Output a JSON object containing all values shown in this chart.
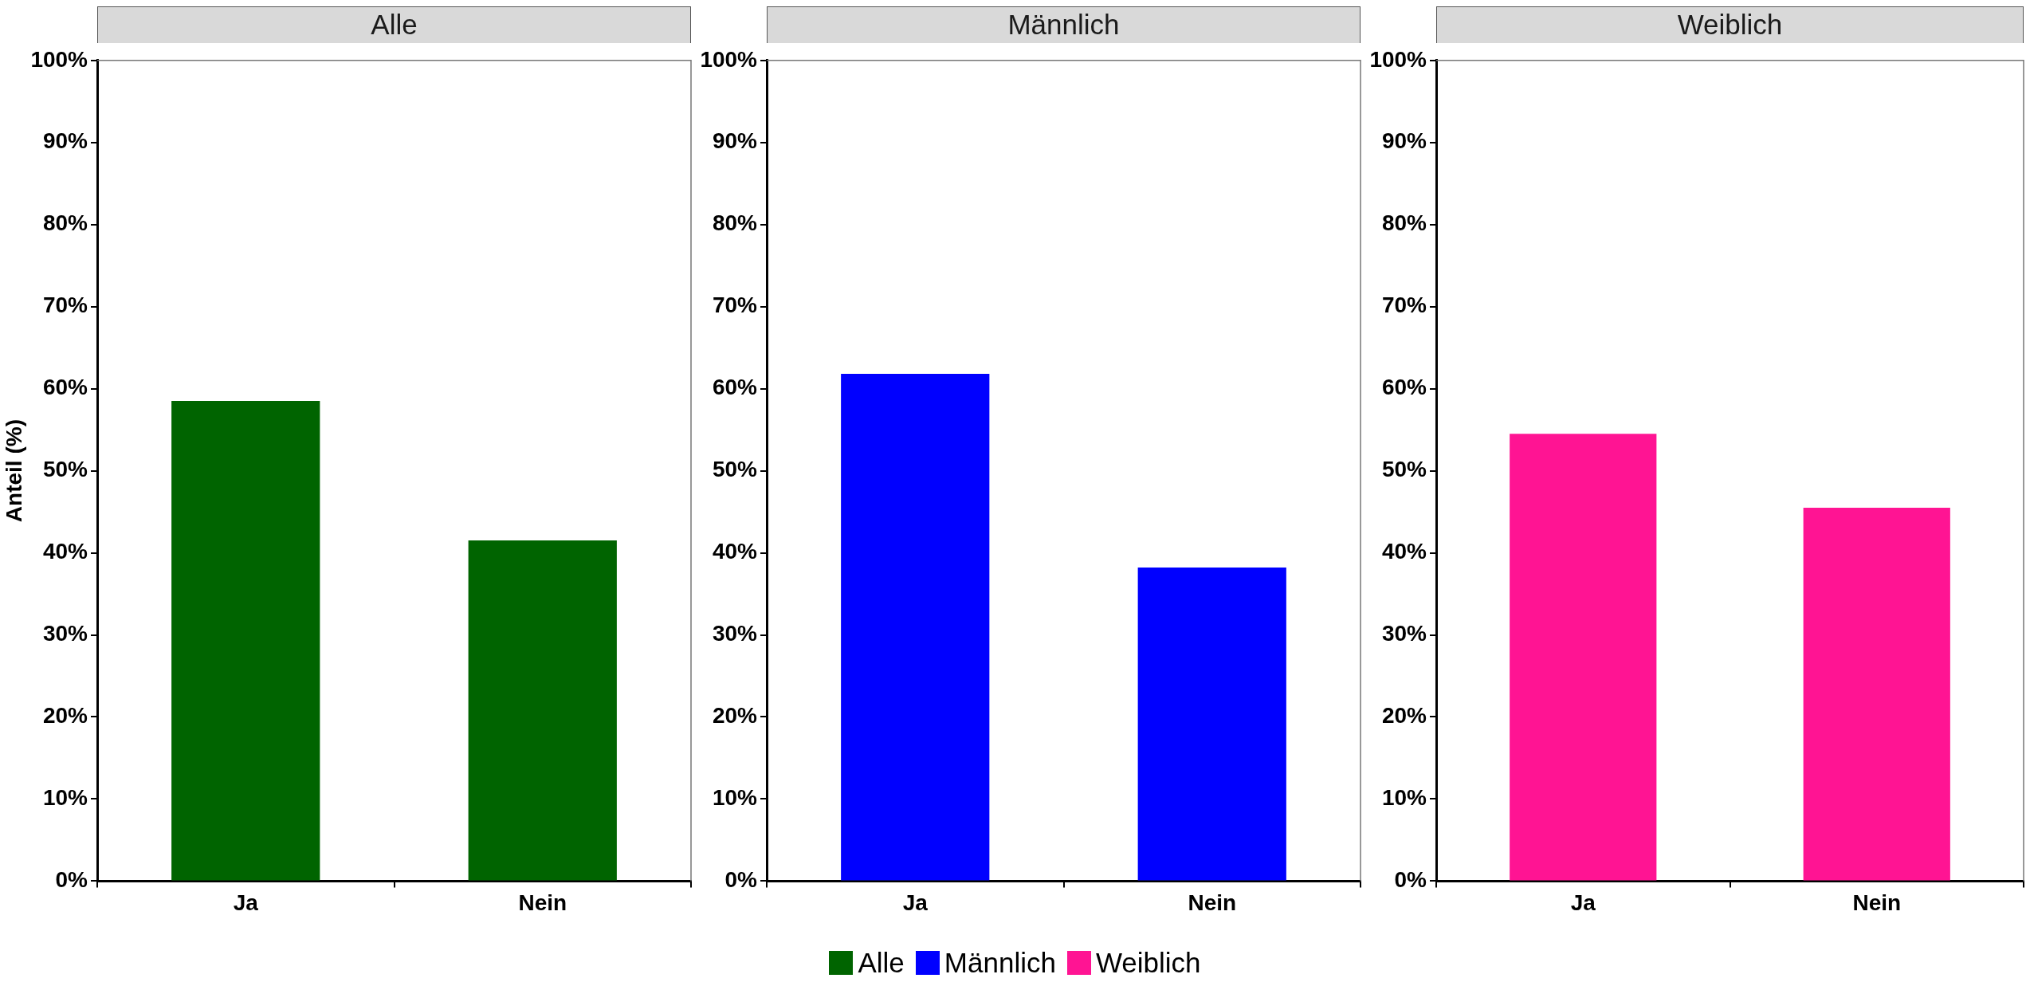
{
  "chart_data": [
    {
      "type": "bar",
      "title": "Alle",
      "ylabel": "Anteil (%)",
      "categories": [
        "Ja",
        "Nein"
      ],
      "series": [
        {
          "name": "Alle",
          "color": "#006400",
          "values": [
            58.5,
            41.5
          ]
        }
      ],
      "ylim": [
        0,
        100
      ],
      "yticks": [
        {
          "value": 0,
          "label": "0%"
        },
        {
          "value": 10,
          "label": "10%"
        },
        {
          "value": 20,
          "label": "20%"
        },
        {
          "value": 30,
          "label": "30%"
        },
        {
          "value": 40,
          "label": "40%"
        },
        {
          "value": 50,
          "label": "50%"
        },
        {
          "value": 60,
          "label": "60%"
        },
        {
          "value": 70,
          "label": "70%"
        },
        {
          "value": 80,
          "label": "80%"
        },
        {
          "value": 90,
          "label": "90%"
        },
        {
          "value": 100,
          "label": "100%"
        }
      ],
      "legend": "bottom"
    },
    {
      "type": "bar",
      "title": "Männlich",
      "categories": [
        "Ja",
        "Nein"
      ],
      "series": [
        {
          "name": "Männlich",
          "color": "#0000ff",
          "values": [
            61.8,
            38.2
          ]
        }
      ],
      "ylim": [
        0,
        100
      ],
      "yticks": [
        {
          "value": 0,
          "label": "0%"
        },
        {
          "value": 10,
          "label": "10%"
        },
        {
          "value": 20,
          "label": "20%"
        },
        {
          "value": 30,
          "label": "30%"
        },
        {
          "value": 40,
          "label": "40%"
        },
        {
          "value": 50,
          "label": "50%"
        },
        {
          "value": 60,
          "label": "60%"
        },
        {
          "value": 70,
          "label": "70%"
        },
        {
          "value": 80,
          "label": "80%"
        },
        {
          "value": 90,
          "label": "90%"
        },
        {
          "value": 100,
          "label": "100%"
        }
      ],
      "legend": "bottom"
    },
    {
      "type": "bar",
      "title": "Weiblich",
      "categories": [
        "Ja",
        "Nein"
      ],
      "series": [
        {
          "name": "Weiblich",
          "color": "#ff1493",
          "values": [
            54.5,
            45.5
          ]
        }
      ],
      "ylim": [
        0,
        100
      ],
      "yticks": [
        {
          "value": 0,
          "label": "0%"
        },
        {
          "value": 10,
          "label": "10%"
        },
        {
          "value": 20,
          "label": "20%"
        },
        {
          "value": 30,
          "label": "30%"
        },
        {
          "value": 40,
          "label": "40%"
        },
        {
          "value": 50,
          "label": "50%"
        },
        {
          "value": 60,
          "label": "60%"
        },
        {
          "value": 70,
          "label": "70%"
        },
        {
          "value": 80,
          "label": "80%"
        },
        {
          "value": 90,
          "label": "90%"
        },
        {
          "value": 100,
          "label": "100%"
        }
      ],
      "legend": "bottom"
    }
  ]
}
